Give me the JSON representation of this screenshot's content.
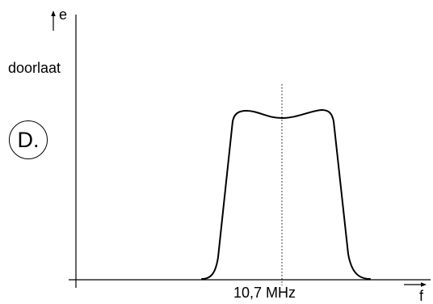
{
  "labels": {
    "y_axis_var": "e",
    "y_axis_caption": "doorlaat",
    "x_axis_var": "f",
    "center_frequency": "10,7 MHz",
    "option": "D."
  },
  "curve": {
    "description": "band-pass response with two peaks and a slight dip at the centre frequency",
    "color": "#000000"
  },
  "colors": {
    "line": "#000000",
    "background": "#ffffff"
  }
}
